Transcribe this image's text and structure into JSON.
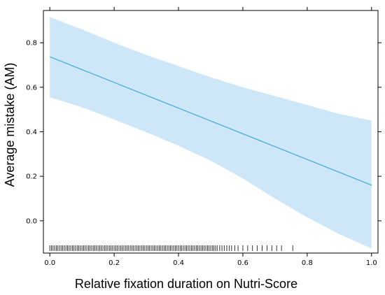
{
  "chart_data": {
    "type": "line",
    "title": "",
    "xlabel": "Relative fixation duration on Nutri-Score",
    "ylabel": "Average mistake (AM)",
    "xlim": [
      -0.02,
      1.02
    ],
    "ylim": [
      -0.145,
      0.945
    ],
    "x_ticks": [
      0.0,
      0.2,
      0.4,
      0.6,
      0.8,
      1.0
    ],
    "x_tick_labels": [
      "0.0",
      "0.2",
      "0.4",
      "0.6",
      "0.8",
      "1.0"
    ],
    "y_ticks": [
      0.0,
      0.2,
      0.4,
      0.6,
      0.8
    ],
    "y_tick_labels": [
      "0.0",
      "0.2",
      "0.4",
      "0.6",
      "0.8"
    ],
    "grid": false,
    "legend": "none",
    "colors": {
      "line": "#3fa9d6",
      "band": "#cde7f8",
      "axis": "#000000",
      "rug": "#000000"
    },
    "series": [
      {
        "x": [
          0.0,
          1.0
        ],
        "y": [
          0.737,
          0.16
        ],
        "lower": [
          [
            0.0,
            0.555
          ],
          [
            0.1,
            0.51
          ],
          [
            0.2,
            0.455
          ],
          [
            0.3,
            0.398
          ],
          [
            0.4,
            0.337
          ],
          [
            0.5,
            0.27
          ],
          [
            0.6,
            0.19
          ],
          [
            0.7,
            0.1
          ],
          [
            0.8,
            0.015
          ],
          [
            0.9,
            -0.06
          ],
          [
            1.0,
            -0.125
          ]
        ],
        "upper": [
          [
            0.0,
            0.915
          ],
          [
            0.1,
            0.86
          ],
          [
            0.2,
            0.8
          ],
          [
            0.3,
            0.745
          ],
          [
            0.4,
            0.695
          ],
          [
            0.5,
            0.645
          ],
          [
            0.6,
            0.6
          ],
          [
            0.7,
            0.56
          ],
          [
            0.8,
            0.52
          ],
          [
            0.9,
            0.48
          ],
          [
            1.0,
            0.45
          ]
        ]
      }
    ],
    "rug_x": [
      0.0,
      0.005,
      0.01,
      0.015,
      0.02,
      0.025,
      0.03,
      0.035,
      0.04,
      0.045,
      0.05,
      0.055,
      0.06,
      0.065,
      0.07,
      0.075,
      0.08,
      0.085,
      0.09,
      0.095,
      0.1,
      0.105,
      0.11,
      0.115,
      0.12,
      0.125,
      0.13,
      0.135,
      0.14,
      0.145,
      0.15,
      0.155,
      0.16,
      0.165,
      0.17,
      0.175,
      0.18,
      0.185,
      0.19,
      0.195,
      0.2,
      0.205,
      0.21,
      0.215,
      0.22,
      0.225,
      0.23,
      0.235,
      0.24,
      0.245,
      0.25,
      0.255,
      0.26,
      0.265,
      0.27,
      0.275,
      0.28,
      0.285,
      0.29,
      0.295,
      0.3,
      0.305,
      0.31,
      0.315,
      0.32,
      0.325,
      0.33,
      0.335,
      0.34,
      0.345,
      0.35,
      0.355,
      0.36,
      0.365,
      0.37,
      0.375,
      0.38,
      0.385,
      0.39,
      0.395,
      0.4,
      0.405,
      0.41,
      0.415,
      0.42,
      0.425,
      0.43,
      0.435,
      0.44,
      0.445,
      0.45,
      0.455,
      0.46,
      0.465,
      0.47,
      0.475,
      0.48,
      0.485,
      0.49,
      0.495,
      0.5,
      0.505,
      0.51,
      0.515,
      0.52,
      0.528,
      0.535,
      0.542,
      0.55,
      0.558,
      0.565,
      0.575,
      0.585,
      0.6,
      0.615,
      0.63,
      0.645,
      0.66,
      0.675,
      0.69,
      0.705,
      0.72,
      0.755
    ]
  }
}
